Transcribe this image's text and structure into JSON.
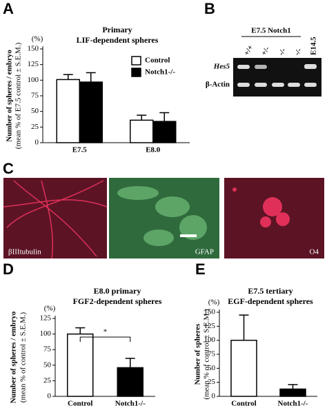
{
  "chart_data": [
    {
      "type": "bar",
      "panel": "A",
      "title": "Primary",
      "subtitle": "LIF-dependent spheres",
      "ylabel": [
        "Number of spheres / embryo",
        "(mean % of E7.5 control ± S.E.M.)"
      ],
      "y_unit": "(%)",
      "categories": [
        "E7.5",
        "E8.0"
      ],
      "series": [
        {
          "name": "Control",
          "color": "#ffffff",
          "values": [
            101,
            36
          ],
          "errors": [
            8,
            8
          ]
        },
        {
          "name": "Notch1-/-",
          "color": "#000000",
          "values": [
            97,
            34
          ],
          "errors": [
            15,
            14
          ]
        }
      ],
      "ylim": [
        0,
        150
      ],
      "yticks": [
        0,
        25,
        50,
        75,
        100,
        125,
        150
      ],
      "legend": "upper right"
    },
    {
      "type": "bar",
      "panel": "D",
      "title": "E8.0 primary",
      "subtitle": "FGF2-dependent spheres",
      "ylabel": [
        "Number of spheres / embryo",
        "(mean % of control ± S.E.M.)"
      ],
      "y_unit": "(%)",
      "categories": [
        "Control",
        "Notch1-/-"
      ],
      "colors": [
        "#ffffff",
        "#000000"
      ],
      "values": [
        100,
        46
      ],
      "errors": [
        10,
        15
      ],
      "annotation": "*",
      "ylim": [
        0,
        125
      ],
      "yticks": [
        0,
        25,
        50,
        75,
        100,
        125
      ]
    },
    {
      "type": "bar",
      "panel": "E",
      "title": "E7.5 tertiary",
      "subtitle": "EGF-dependent spheres",
      "ylabel": [
        "Number of spheres",
        "(mean % of control ± S.E.M.)"
      ],
      "y_unit": "(%)",
      "categories": [
        "Control",
        "Notch1-/-"
      ],
      "colors": [
        "#ffffff",
        "#000000"
      ],
      "values": [
        100,
        13
      ],
      "errors": [
        45,
        8
      ],
      "ylim": [
        0,
        150
      ],
      "yticks": [
        0,
        25,
        50,
        75,
        100,
        125,
        150
      ]
    }
  ],
  "gel": {
    "panel": "B",
    "title": "E7.5 Notch1",
    "lanes": [
      "+/+",
      "+/-",
      "-/-",
      "-/-",
      "E14.5"
    ],
    "rows": [
      "Hes5",
      "β-Actin"
    ]
  },
  "images": {
    "panel": "C",
    "labels": [
      "βIIItubulin",
      "GFAP",
      "O4"
    ]
  }
}
